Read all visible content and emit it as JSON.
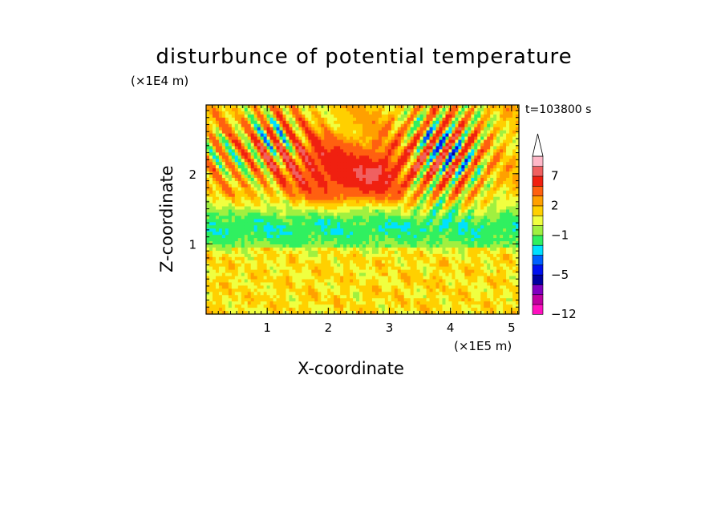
{
  "chart_data": {
    "type": "heatmap",
    "title": "disturbunce of potential temperature",
    "xlabel": "X-coordinate",
    "ylabel": "Z-coordinate",
    "x_unit": "(×1E5 m)",
    "y_unit": "(×1E4 m)",
    "time_label": "t=103800 s",
    "xlim": [
      0,
      5.12
    ],
    "ylim": [
      0,
      2.98
    ],
    "x_ticks": [
      1,
      2,
      3,
      4,
      5
    ],
    "y_ticks": [
      1,
      2
    ],
    "colorbar": {
      "levels": [
        -12,
        -10,
        -8,
        -6,
        -5,
        -4,
        -3,
        -2,
        -1,
        0,
        1,
        2,
        3,
        5,
        7,
        9,
        11
      ],
      "tick_labels": [
        "7",
        "2",
        "−1",
        "−5",
        "−12"
      ],
      "colors": [
        "#ff10c0",
        "#c000a0",
        "#8000c0",
        "#0000a0",
        "#0010f0",
        "#0060ff",
        "#00e0ff",
        "#30f060",
        "#a0f040",
        "#f0ff40",
        "#ffd000",
        "#ffa000",
        "#ff6010",
        "#f02010",
        "#f06060",
        "#ffb8c8"
      ],
      "extend": "max"
    }
  }
}
